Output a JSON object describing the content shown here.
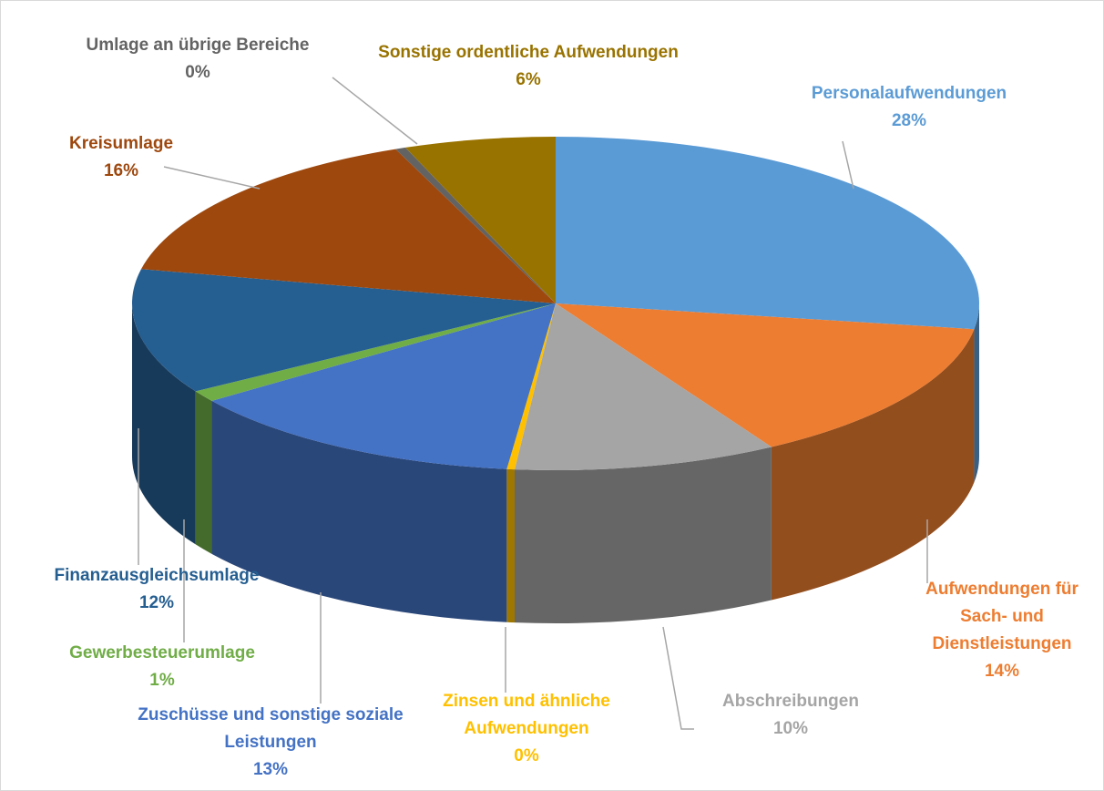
{
  "chart_data": {
    "type": "pie3d",
    "categories": [
      "Personalaufwendungen",
      "Aufwendungen für Sach- und Dienstleistungen",
      "Abschreibungen",
      "Zinsen und ähnliche Aufwendungen",
      "Zuschüsse und sonstige soziale Leistungen",
      "Gewerbesteuerumlage",
      "Finanzausgleichsumlage",
      "Kreisumlage",
      "Umlage an übrige Bereiche",
      "Sonstige ordentliche Aufwendungen"
    ],
    "values": [
      27.6,
      14.1,
      10.1,
      0.3,
      13.3,
      1.1,
      12.2,
      15.6,
      0.4,
      5.8
    ],
    "value_labels": [
      "28%",
      "14%",
      "10%",
      "0%",
      "13%",
      "1%",
      "12%",
      "16%",
      "0%",
      "6%"
    ],
    "colors": [
      "#5b9bd5",
      "#ed7d31",
      "#a5a5a5",
      "#ffc000",
      "#4472c4",
      "#70ad47",
      "#255e91",
      "#9e480e",
      "#636363",
      "#997300"
    ]
  }
}
